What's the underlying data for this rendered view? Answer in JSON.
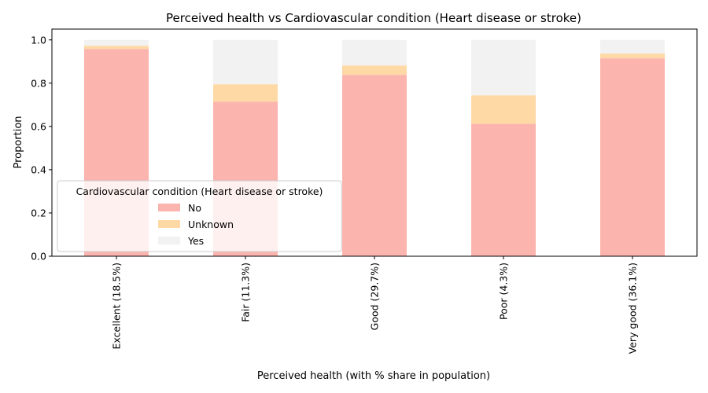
{
  "chart_data": {
    "type": "bar",
    "stacked": true,
    "title": "Perceived health  vs Cardiovascular condition (Heart disease or stroke)",
    "xlabel": "Perceived health  (with % share in population)",
    "ylabel": "Proportion",
    "ylim": [
      0,
      1.05
    ],
    "yticks": [
      "0.0",
      "0.2",
      "0.4",
      "0.6",
      "0.8",
      "1.0"
    ],
    "categories": [
      "Excellent (18.5%)",
      "Fair (11.3%)",
      "Good (29.7%)",
      "Poor (4.3%)",
      "Very good (36.1%)"
    ],
    "series": [
      {
        "name": "No",
        "color": "#fbb4ae",
        "values": [
          0.958,
          0.714,
          0.838,
          0.612,
          0.915
        ]
      },
      {
        "name": "Unknown",
        "color": "#fed9a6",
        "values": [
          0.015,
          0.081,
          0.044,
          0.132,
          0.022
        ]
      },
      {
        "name": "Yes",
        "color": "#f2f2f2",
        "values": [
          0.027,
          0.205,
          0.118,
          0.256,
          0.063
        ]
      }
    ],
    "legend": {
      "title": "Cardiovascular condition (Heart disease or stroke)",
      "placement": "lower-left"
    },
    "grid": false
  }
}
